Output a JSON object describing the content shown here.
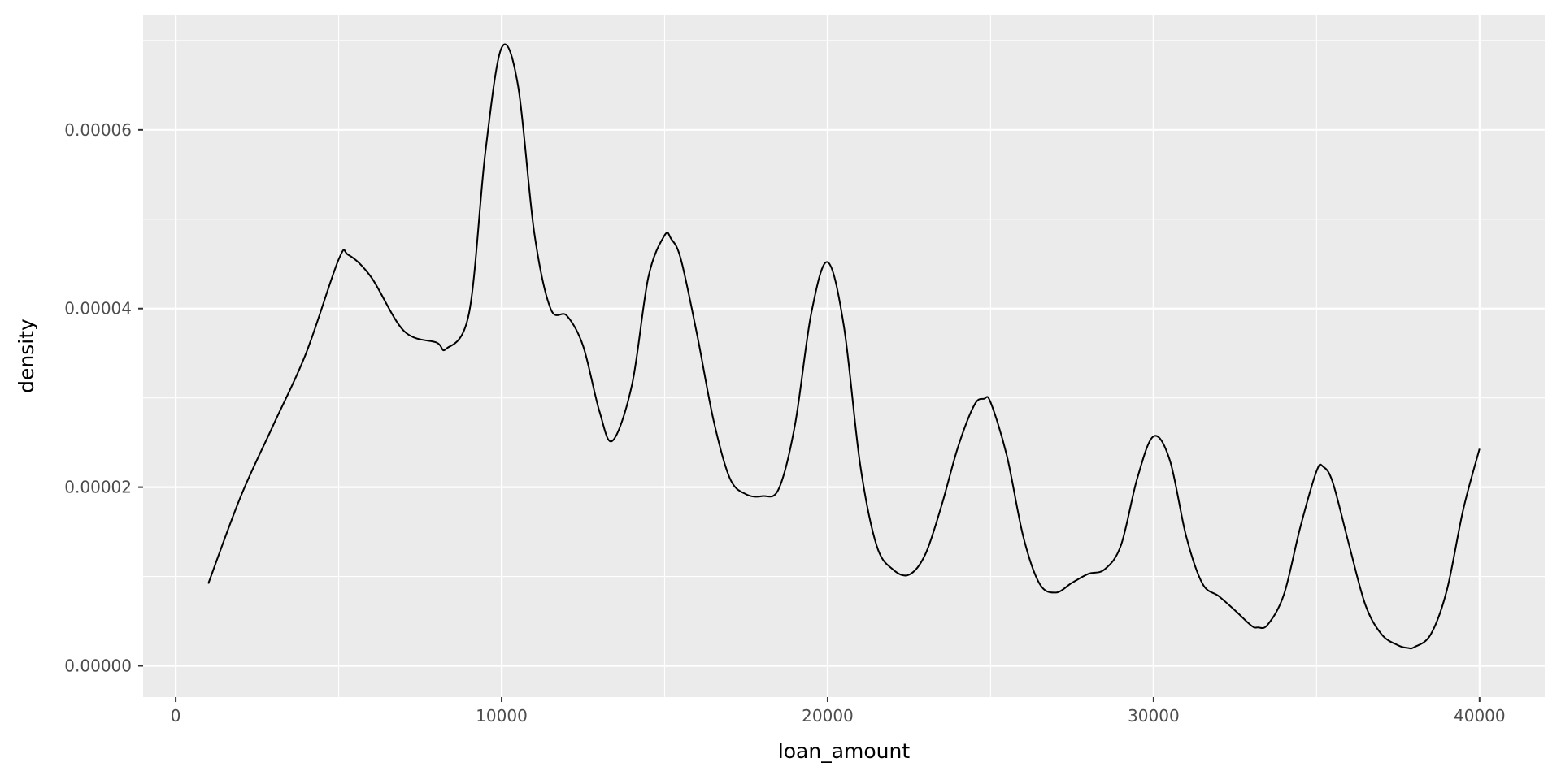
{
  "chart_data": {
    "type": "line",
    "title": "",
    "xlabel": "loan_amount",
    "ylabel": "density",
    "xlim": [
      -1000,
      42000
    ],
    "ylim": [
      -3.5e-06,
      7.29e-05
    ],
    "x_ticks": [
      0,
      10000,
      20000,
      30000,
      40000
    ],
    "x_tick_labels": [
      "0",
      "10000",
      "20000",
      "30000",
      "40000"
    ],
    "y_ticks": [
      0,
      2e-05,
      4e-05,
      6e-05
    ],
    "y_tick_labels": [
      "0.00000",
      "0.00002",
      "0.00004",
      "0.00006"
    ],
    "grid": true,
    "legend": "none",
    "colors": {
      "panel": "#ebebeb",
      "grid": "#ffffff",
      "line": "#000000",
      "tick_text": "#4d4d4d"
    },
    "series": [
      {
        "x": [
          1000,
          2000,
          3000,
          4000,
          5000,
          5300,
          6000,
          7000,
          8000,
          8300,
          9000,
          9500,
          10000,
          10500,
          11000,
          11500,
          12000,
          12500,
          13000,
          13400,
          14000,
          14500,
          15000,
          15200,
          15500,
          16000,
          16500,
          17000,
          17500,
          18000,
          18500,
          19000,
          19500,
          20000,
          20500,
          21000,
          21500,
          22000,
          22500,
          23000,
          23500,
          24000,
          24500,
          24800,
          25000,
          25500,
          26000,
          26500,
          27000,
          27500,
          28000,
          28500,
          29000,
          29500,
          30000,
          30500,
          31000,
          31500,
          32000,
          32500,
          33000,
          33200,
          33500,
          34000,
          34500,
          35000,
          35200,
          35500,
          36000,
          36500,
          37000,
          37500,
          37800,
          38000,
          38500,
          39000,
          39500,
          40000
        ],
        "y": [
          9.2e-06,
          1.9e-05,
          2.7e-05,
          3.5e-05,
          4.55e-05,
          4.6e-05,
          4.35e-05,
          3.75e-05,
          3.62e-05,
          3.55e-05,
          3.95e-05,
          5.75e-05,
          6.92e-05,
          6.5e-05,
          4.85e-05,
          4e-05,
          3.92e-05,
          3.58e-05,
          2.85e-05,
          2.52e-05,
          3.15e-05,
          4.35e-05,
          4.82e-05,
          4.78e-05,
          4.55e-05,
          3.7e-05,
          2.75e-05,
          2.1e-05,
          1.92e-05,
          1.9e-05,
          1.98e-05,
          2.7e-05,
          3.95e-05,
          4.52e-05,
          3.8e-05,
          2.25e-05,
          1.35e-05,
          1.08e-05,
          1.02e-05,
          1.25e-05,
          1.8e-05,
          2.45e-05,
          2.92e-05,
          2.99e-05,
          2.95e-05,
          2.35e-05,
          1.45e-05,
          9.2e-06,
          8.2e-06,
          9.3e-06,
          1.03e-05,
          1.08e-05,
          1.35e-05,
          2.1e-05,
          2.57e-05,
          2.3e-05,
          1.45e-05,
          9.2e-06,
          7.8e-06,
          6.2e-06,
          4.5e-06,
          4.3e-06,
          4.6e-06,
          8e-06,
          1.55e-05,
          2.18e-05,
          2.23e-05,
          2.05e-05,
          1.35e-05,
          6.8e-06,
          3.5e-06,
          2.3e-06,
          2e-06,
          2.1e-06,
          3.5e-06,
          8.5e-06,
          1.75e-05,
          2.43e-05
        ]
      }
    ]
  }
}
